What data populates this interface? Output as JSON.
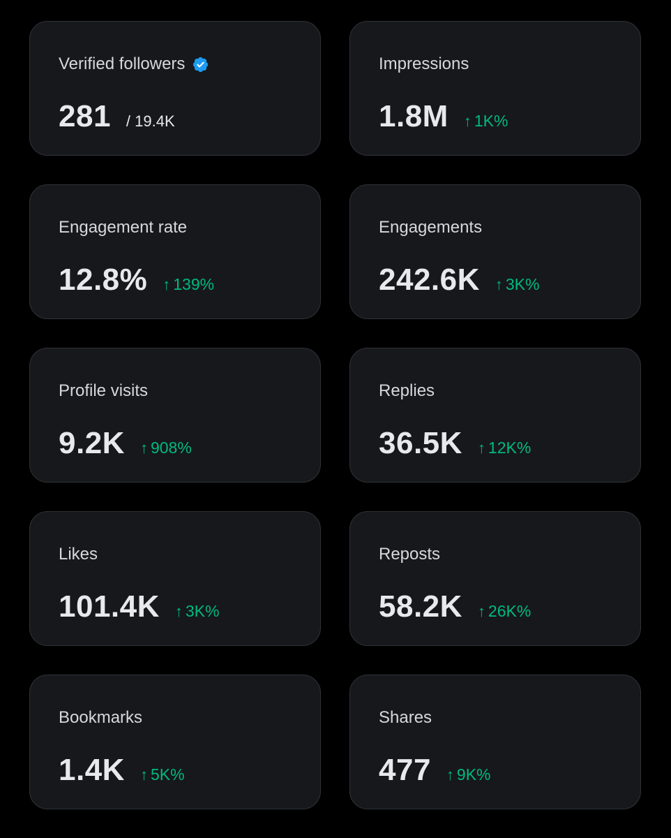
{
  "colors": {
    "background": "#000000",
    "card_background": "#16181c",
    "card_border": "#2f3336",
    "label_text": "#d6d9db",
    "value_text": "#e7e9ea",
    "positive_change": "#00ba7c",
    "verified_badge": "#1d9bf0"
  },
  "icons": {
    "verified": "verified-badge-icon",
    "change": "arrow-up-icon"
  },
  "metrics": [
    {
      "label": "Verified followers",
      "value": "281",
      "total": "/ 19.4K",
      "verified": true
    },
    {
      "label": "Impressions",
      "value": "1.8M",
      "change": "1K%"
    },
    {
      "label": "Engagement rate",
      "value": "12.8%",
      "change": "139%"
    },
    {
      "label": "Engagements",
      "value": "242.6K",
      "change": "3K%"
    },
    {
      "label": "Profile visits",
      "value": "9.2K",
      "change": "908%"
    },
    {
      "label": "Replies",
      "value": "36.5K",
      "change": "12K%"
    },
    {
      "label": "Likes",
      "value": "101.4K",
      "change": "3K%"
    },
    {
      "label": "Reposts",
      "value": "58.2K",
      "change": "26K%"
    },
    {
      "label": "Bookmarks",
      "value": "1.4K",
      "change": "5K%"
    },
    {
      "label": "Shares",
      "value": "477",
      "change": "9K%"
    }
  ]
}
